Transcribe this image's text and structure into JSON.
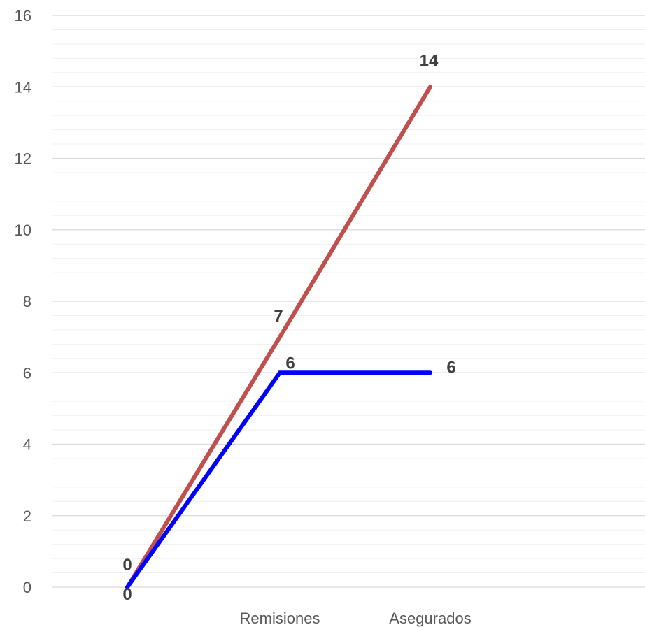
{
  "chart_data": {
    "type": "line",
    "categories": [
      "",
      "Remisiones",
      "Asegurados"
    ],
    "series": [
      {
        "values": [
          0,
          7,
          14
        ],
        "labels": [
          "0",
          "7",
          "14"
        ],
        "color": "#c0504d"
      },
      {
        "values": [
          0,
          6,
          6
        ],
        "labels": [
          "0",
          "6",
          "6"
        ],
        "color": "#0000ff"
      }
    ],
    "ylim": [
      0,
      16
    ],
    "y_ticks": [
      0,
      2,
      4,
      6,
      8,
      10,
      12,
      14,
      16
    ],
    "y_tick_labels": [
      "0",
      "2",
      "4",
      "6",
      "8",
      "10",
      "12",
      "14",
      "16"
    ],
    "grid": true,
    "minor_grid": true,
    "gridline_color": "#d9d9d9",
    "minor_gridline_color": "#f0f0f0",
    "legend": "none"
  }
}
